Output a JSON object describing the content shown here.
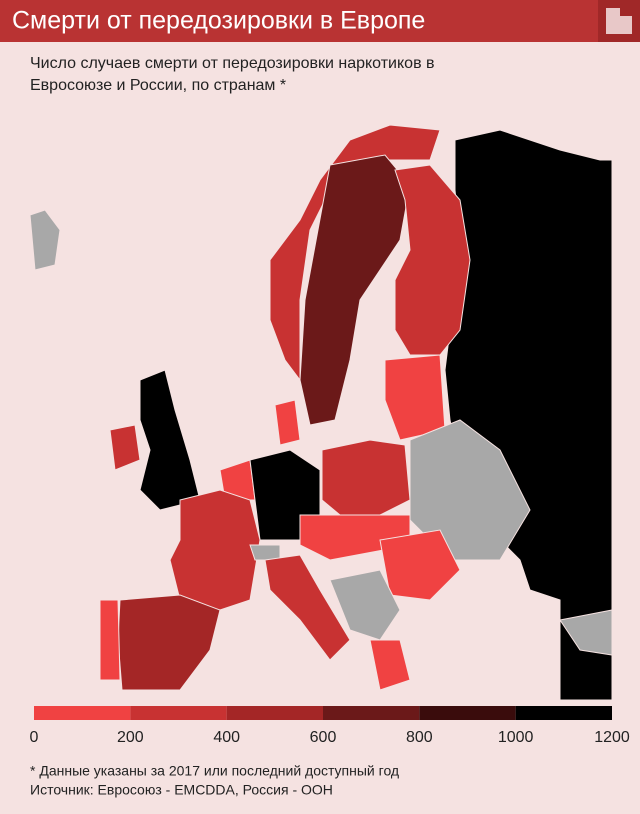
{
  "header": {
    "title": "Смерти от передозировки в Европе"
  },
  "subtitle": [
    "Число случаев смерти от передозировки наркотиков в",
    "Евросоюзе и России, по странам *"
  ],
  "legend": {
    "ticks": [
      0,
      200,
      400,
      600,
      800,
      1000,
      1200
    ],
    "colors": [
      "#f04242",
      "#c83232",
      "#a42626",
      "#6b1919",
      "#3a0c0c",
      "#000000"
    ]
  },
  "footnotes": [
    "* Данные указаны за 2017 или последний доступный год",
    "Источник: Евросоюз - EMCDDA, Россия - ООН"
  ]
}
